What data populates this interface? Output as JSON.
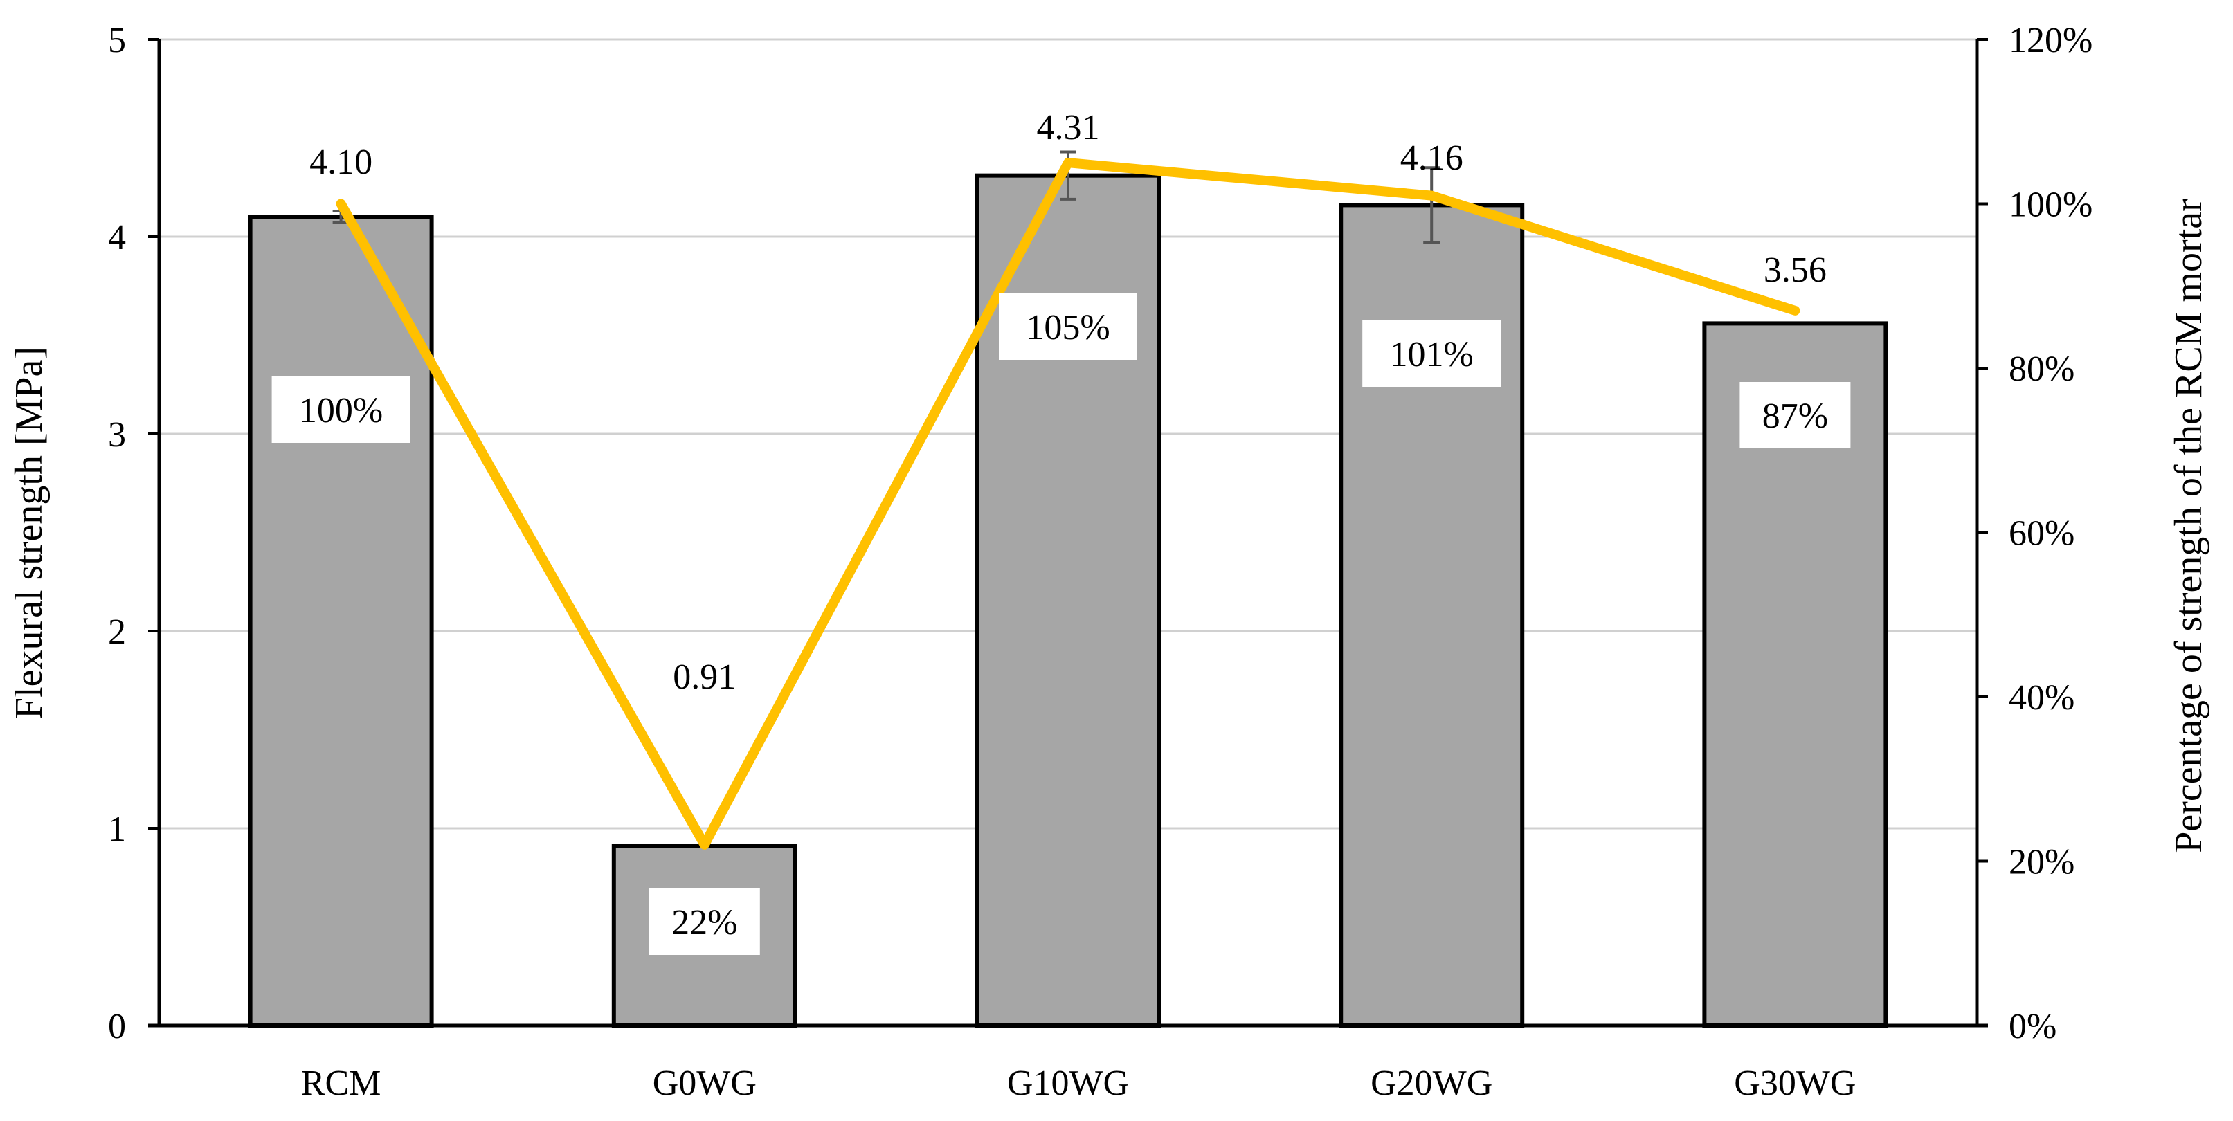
{
  "chart_data": {
    "type": "bar",
    "categories": [
      "RCM",
      "G0WG",
      "G10WG",
      "G20WG",
      "G30WG"
    ],
    "series": [
      {
        "type": "bar",
        "axis": "left",
        "values": [
          4.1,
          0.91,
          4.31,
          4.16,
          3.56
        ],
        "value_labels": [
          "4.10",
          "0.91",
          "4.31",
          "4.16",
          "3.56"
        ],
        "error": [
          0.03,
          0.0,
          0.12,
          0.19,
          0.0
        ],
        "color": "#a6a6a6"
      },
      {
        "type": "line",
        "axis": "right",
        "values": [
          100,
          22,
          105,
          101,
          87
        ],
        "value_labels": [
          "100%",
          "22%",
          "105%",
          "101%",
          "87%"
        ],
        "color": "#ffc000"
      }
    ],
    "ylabel": "Flexural strength [MPa]",
    "y2label": "Percentage of strength of the RCM mortar",
    "ylim": [
      0,
      5
    ],
    "y2lim": [
      0,
      120
    ],
    "yticks": [
      "0",
      "1",
      "2",
      "3",
      "4",
      "5"
    ],
    "y2ticks": [
      "0%",
      "20%",
      "40%",
      "60%",
      "80%",
      "100%",
      "120%"
    ],
    "grid": true
  }
}
